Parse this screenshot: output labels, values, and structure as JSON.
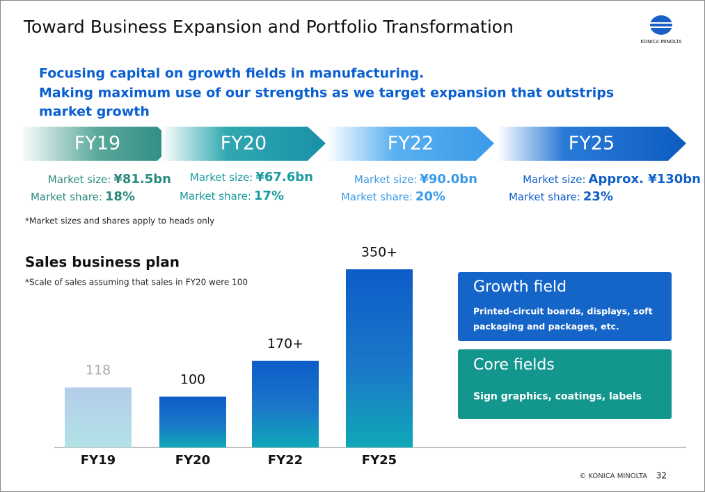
{
  "title": "Toward Business Expansion and Portfolio Transformation",
  "logo": "KONICA MINOLTA",
  "headline": [
    "Focusing capital on growth fields in manufacturing.",
    "Making maximum use of our strengths as we target expansion that outstrips",
    "market growth"
  ],
  "stages": [
    {
      "period": "FY19",
      "size_label": "Market size:",
      "size": "¥81.5bn",
      "share_label": "Market share:",
      "share": "18%"
    },
    {
      "period": "FY20",
      "size_label": "Market size:",
      "size": "¥67.6bn",
      "share_label": "Market share:",
      "share": "17%"
    },
    {
      "period": "FY22",
      "size_label": "Market size:",
      "size": "¥90.0bn",
      "share_label": "Market share:",
      "share": "20%"
    },
    {
      "period": "FY25",
      "size_label": "Market size:",
      "size": "Approx. ¥130bn",
      "share_label": "Market share:",
      "share": "23%"
    }
  ],
  "note": "*Market sizes and shares apply to heads only",
  "chart_data": {
    "type": "bar",
    "title": "Sales business plan",
    "subtitle": "*Scale of sales assuming that sales in FY20 were 100",
    "categories": [
      "FY19",
      "FY20",
      "FY22",
      "FY25"
    ],
    "values": [
      118,
      100,
      170,
      350
    ],
    "value_labels": [
      "118",
      "100",
      "170+",
      "350+"
    ]
  },
  "fields": [
    {
      "title": "Growth field",
      "text": [
        "Printed-circuit boards, displays, soft",
        "packaging and packages, etc."
      ]
    },
    {
      "title": "Core fields",
      "text": [
        "Sign graphics, coatings, labels"
      ]
    }
  ],
  "footer": {
    "copyright": "© KONICA MINOLTA",
    "page": "32"
  }
}
